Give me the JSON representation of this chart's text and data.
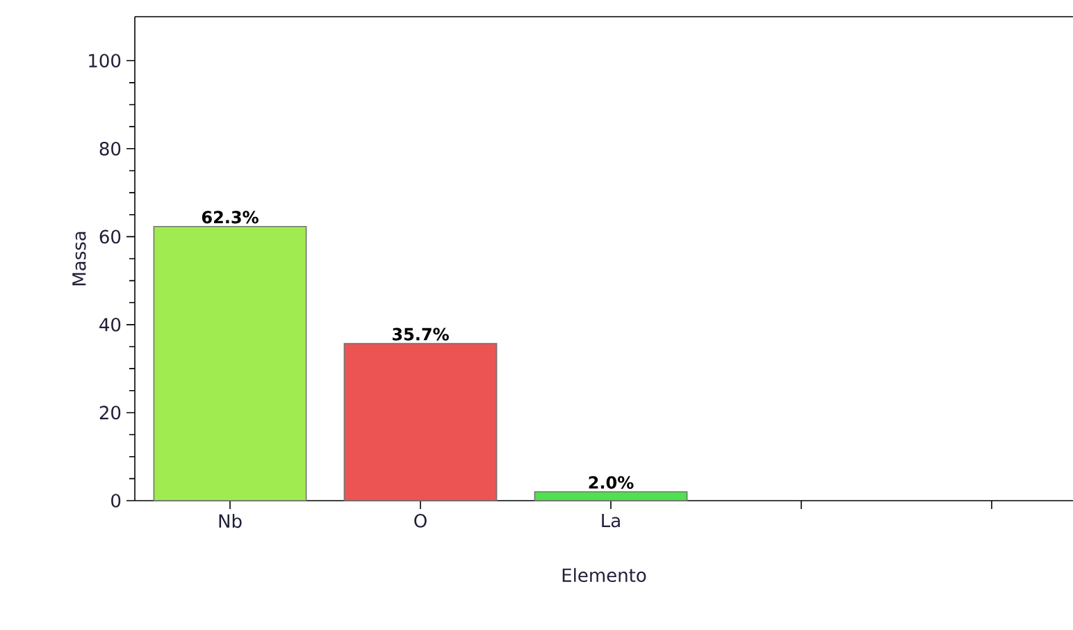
{
  "chart_data": {
    "type": "bar",
    "xlabel": "Elemento",
    "ylabel": "Massa",
    "categories": [
      "Nb",
      "O",
      "La",
      null,
      null
    ],
    "values": [
      62.3,
      35.7,
      2.0,
      null,
      null
    ],
    "colors": [
      "#a0ec50",
      "#ec5353",
      "#50e050",
      null,
      null
    ],
    "value_labels": [
      "62.3%",
      "35.7%",
      "2.0%",
      null,
      null
    ],
    "ylim": [
      0,
      110
    ],
    "yticks": [
      0,
      20,
      40,
      60,
      80,
      100
    ],
    "grid": false,
    "legend": false
  }
}
